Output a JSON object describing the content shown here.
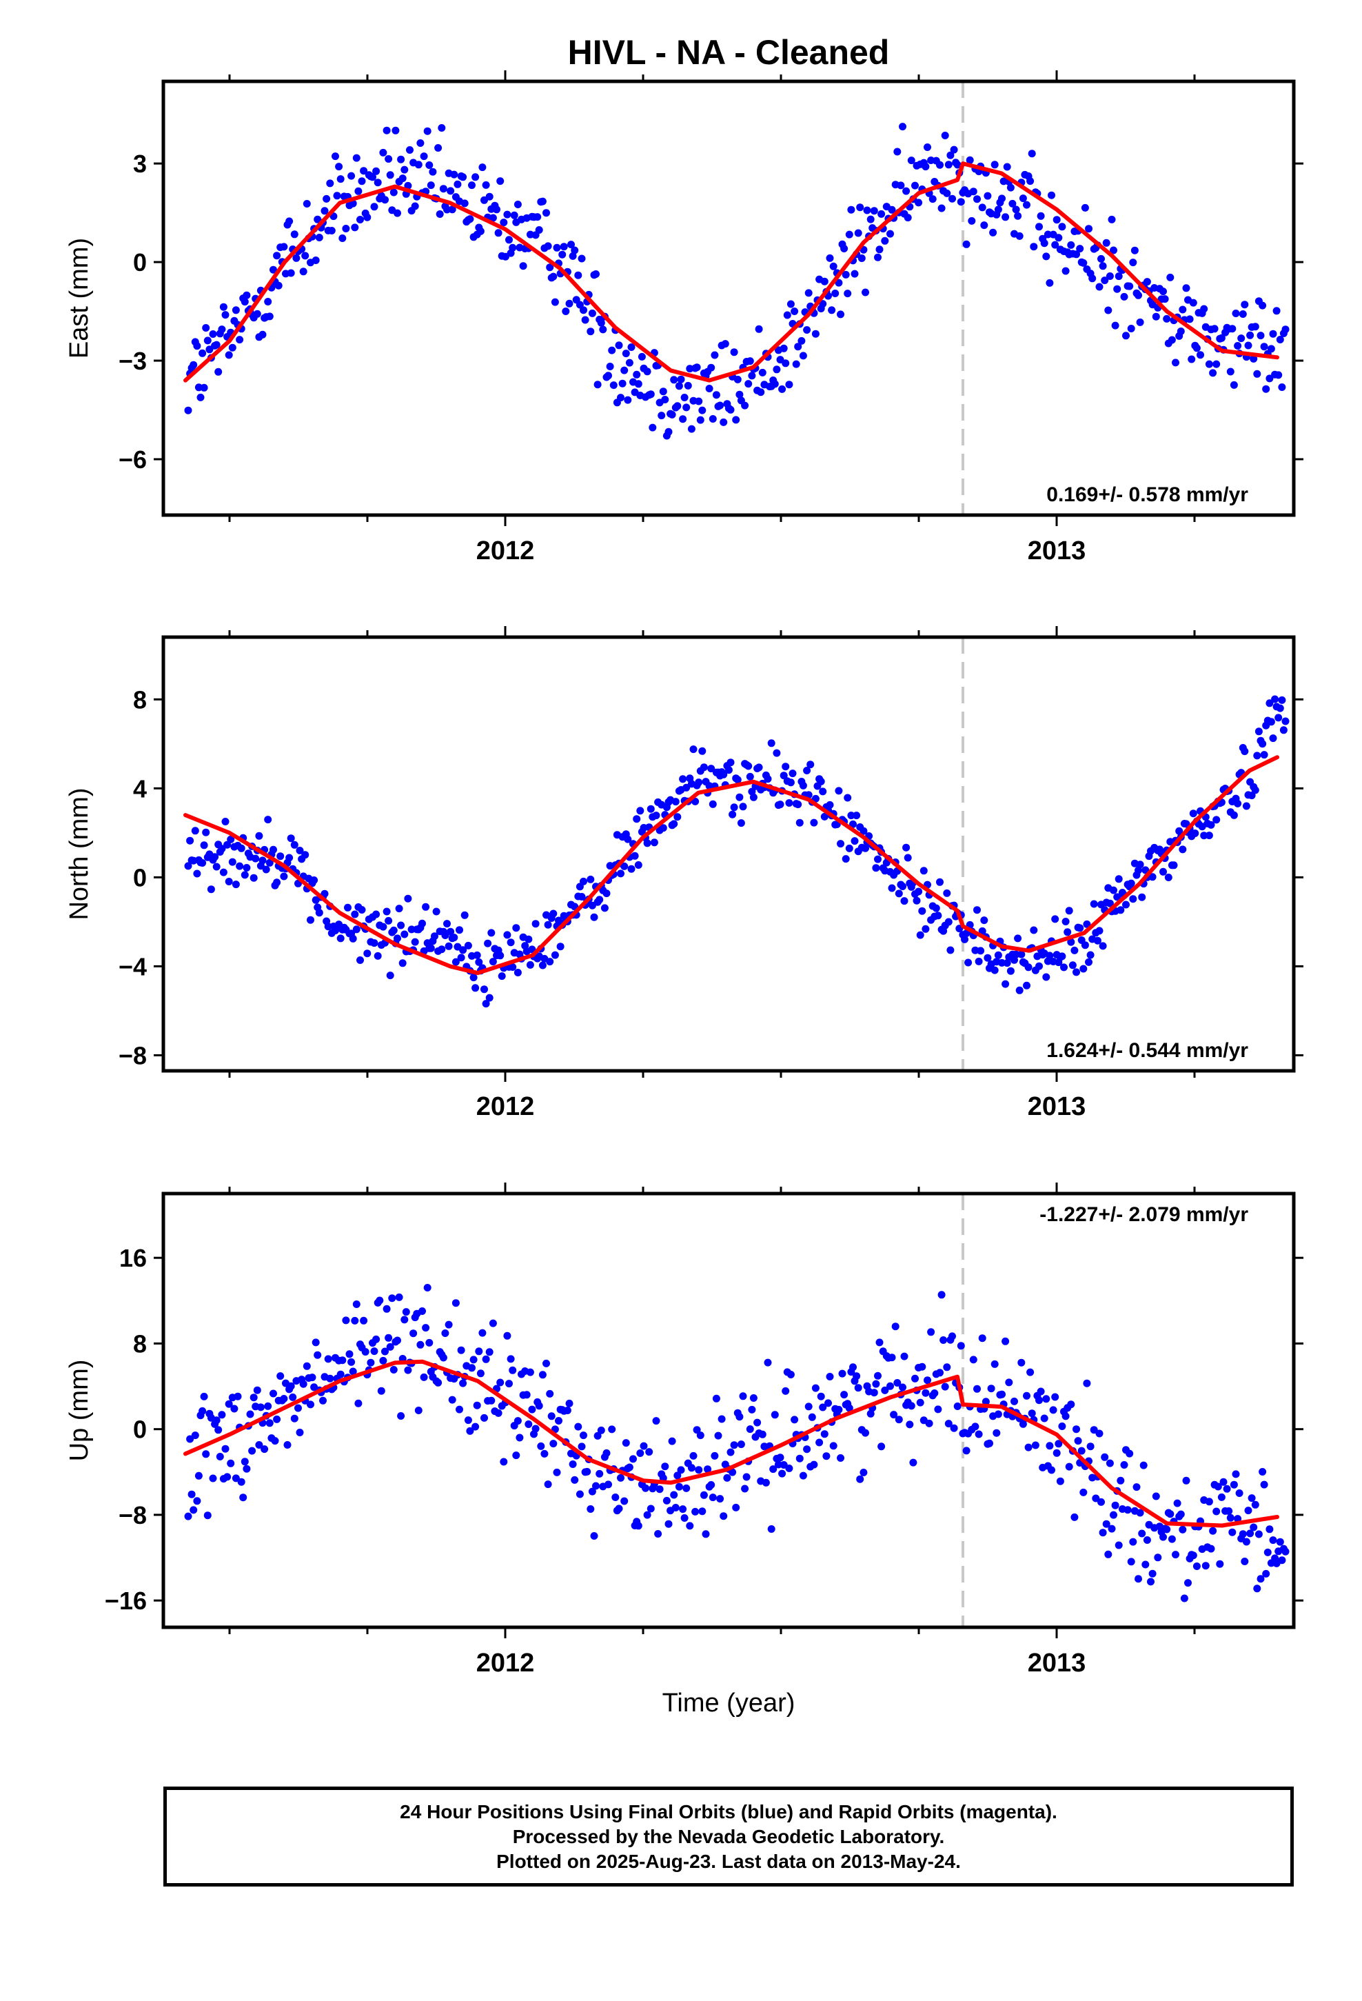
{
  "title": "HIVL  - NA - Cleaned",
  "x_axis": {
    "label": "Time (year)",
    "tick_labels": [
      "2012",
      "2013"
    ]
  },
  "colors": {
    "points": "#0000ff",
    "model": "#ff0000",
    "break_line": "#c8c8c8",
    "frame": "#000000"
  },
  "caption": {
    "lines": [
      "24 Hour Positions Using Final Orbits (blue) and Rapid Orbits (magenta).",
      "Processed by the Nevada Geodetic Laboratory.",
      "Plotted on 2025-Aug-23. Last data on 2013-May-24."
    ]
  },
  "chart_data": [
    {
      "type": "scatter",
      "component": "East",
      "ylabel": "East (mm)",
      "xlim": [
        2011.38,
        2013.43
      ],
      "ylim": [
        -7.7,
        5.5
      ],
      "yticks": [
        3,
        0,
        -3,
        -6
      ],
      "xticks": [
        2012,
        2013
      ],
      "equipment_break": 2012.83,
      "rate": "0.169+/- 0.578 mm/yr",
      "rate_position": "bottom-right",
      "model_curve": {
        "x": [
          2011.42,
          2011.5,
          2011.6,
          2011.7,
          2011.8,
          2011.9,
          2012.0,
          2012.1,
          2012.2,
          2012.3,
          2012.37,
          2012.45,
          2012.55,
          2012.65,
          2012.75,
          2012.82,
          2012.83,
          2012.9,
          2013.0,
          2013.1,
          2013.2,
          2013.3,
          2013.4
        ],
        "y": [
          -3.6,
          -2.4,
          0.0,
          1.8,
          2.3,
          1.8,
          1.0,
          -0.2,
          -2.0,
          -3.3,
          -3.6,
          -3.2,
          -1.6,
          0.6,
          2.1,
          2.5,
          3.0,
          2.7,
          1.6,
          0.2,
          -1.5,
          -2.7,
          -2.9
        ]
      },
      "points": {
        "noise": 1.05,
        "anchors": {
          "x": [
            2011.42,
            2011.5,
            2011.6,
            2011.7,
            2011.8,
            2011.9,
            2012.0,
            2012.1,
            2012.2,
            2012.3,
            2012.37,
            2012.45,
            2012.55,
            2012.65,
            2012.75,
            2012.82,
            2012.83,
            2012.9,
            2013.0,
            2013.1,
            2013.2,
            2013.3,
            2013.4
          ],
          "y": [
            -3.6,
            -2.4,
            0.0,
            1.8,
            2.6,
            2.0,
            1.2,
            0.2,
            -2.8,
            -4.0,
            -4.0,
            -3.6,
            -1.8,
            0.6,
            2.4,
            3.2,
            2.5,
            2.2,
            0.6,
            -0.2,
            -1.6,
            -2.5,
            -2.6
          ]
        }
      }
    },
    {
      "type": "scatter",
      "component": "North",
      "ylabel": "North (mm)",
      "xlim": [
        2011.38,
        2013.43
      ],
      "ylim": [
        -8.7,
        10.8
      ],
      "yticks": [
        8,
        4,
        0,
        -4,
        -8
      ],
      "xticks": [
        2012,
        2013
      ],
      "equipment_break": 2012.83,
      "rate": "1.624+/- 0.544 mm/yr",
      "rate_position": "bottom-right",
      "model_curve": {
        "x": [
          2011.42,
          2011.5,
          2011.6,
          2011.7,
          2011.8,
          2011.9,
          2011.95,
          2012.05,
          2012.15,
          2012.25,
          2012.35,
          2012.45,
          2012.55,
          2012.65,
          2012.75,
          2012.82,
          2012.83,
          2012.9,
          2012.95,
          2013.05,
          2013.15,
          2013.25,
          2013.35,
          2013.4
        ],
        "y": [
          2.8,
          2.0,
          0.5,
          -1.6,
          -3.0,
          -4.0,
          -4.3,
          -3.5,
          -1.0,
          1.8,
          3.8,
          4.3,
          3.5,
          1.8,
          -0.3,
          -1.5,
          -2.2,
          -3.1,
          -3.3,
          -2.5,
          -0.3,
          2.5,
          4.8,
          5.4
        ]
      },
      "points": {
        "noise": 1.0,
        "anchors": {
          "x": [
            2011.42,
            2011.5,
            2011.6,
            2011.7,
            2011.8,
            2011.9,
            2011.95,
            2012.05,
            2012.15,
            2012.25,
            2012.35,
            2012.45,
            2012.55,
            2012.65,
            2012.75,
            2012.82,
            2012.83,
            2012.9,
            2012.95,
            2013.05,
            2013.15,
            2013.25,
            2013.35,
            2013.4
          ],
          "y": [
            1.4,
            1.0,
            1.2,
            -2.4,
            -2.6,
            -2.4,
            -4.3,
            -3.0,
            -1.2,
            2.0,
            4.4,
            4.2,
            4.0,
            1.5,
            -1.0,
            -1.6,
            -2.6,
            -3.6,
            -3.8,
            -3.0,
            0.0,
            2.2,
            4.5,
            7.8
          ]
        }
      }
    },
    {
      "type": "scatter",
      "component": "Up",
      "ylabel": "Up (mm)",
      "xlim": [
        2011.38,
        2013.43
      ],
      "ylim": [
        -18.5,
        22.0
      ],
      "yticks": [
        16,
        8,
        0,
        -8,
        -16
      ],
      "xticks": [
        2012,
        2013
      ],
      "equipment_break": 2012.83,
      "rate": "-1.227+/- 2.079 mm/yr",
      "rate_position": "top-right",
      "model_curve": {
        "x": [
          2011.42,
          2011.5,
          2011.6,
          2011.7,
          2011.8,
          2011.85,
          2011.95,
          2012.05,
          2012.15,
          2012.25,
          2012.3,
          2012.4,
          2012.5,
          2012.6,
          2012.7,
          2012.82,
          2012.83,
          2012.9,
          2013.0,
          2013.1,
          2013.2,
          2013.3,
          2013.4
        ],
        "y": [
          -2.3,
          -0.5,
          2.0,
          4.5,
          6.2,
          6.3,
          4.5,
          1.0,
          -2.8,
          -4.8,
          -5.0,
          -3.8,
          -1.5,
          1.0,
          3.0,
          4.9,
          2.3,
          2.1,
          -0.5,
          -5.5,
          -8.8,
          -9.0,
          -8.2
        ]
      },
      "points": {
        "noise": 4.0,
        "anchors": {
          "x": [
            2011.42,
            2011.5,
            2011.6,
            2011.7,
            2011.8,
            2011.85,
            2011.95,
            2012.05,
            2012.15,
            2012.25,
            2012.3,
            2012.4,
            2012.5,
            2012.6,
            2012.7,
            2012.82,
            2012.83,
            2012.9,
            2013.0,
            2013.1,
            2013.2,
            2013.3,
            2013.4
          ],
          "y": [
            -3.0,
            -1.0,
            2.0,
            5.5,
            8.5,
            9.0,
            3.5,
            2.0,
            -3.0,
            -5.5,
            -5.0,
            -3.5,
            -1.0,
            1.5,
            4.0,
            6.0,
            2.0,
            3.0,
            0.0,
            -5.5,
            -10.0,
            -9.0,
            -11.0
          ]
        }
      }
    }
  ]
}
